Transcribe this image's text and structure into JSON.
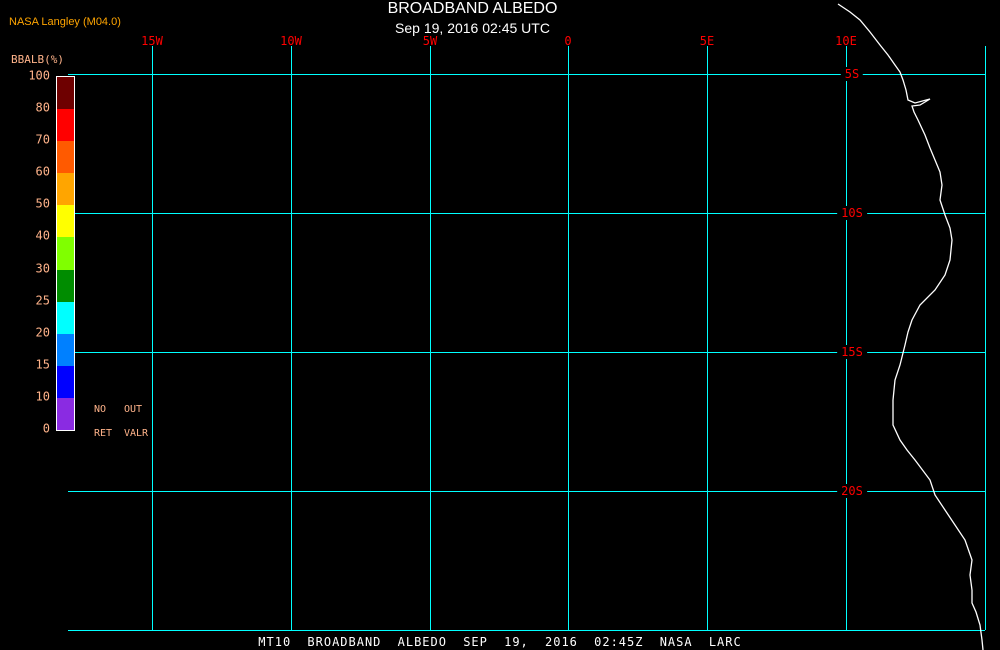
{
  "title": "BROADBAND ALBEDO",
  "subtitle": "Sep 19, 2016 02:45 UTC",
  "credit": "NASA Langley (M04.0)",
  "footer": "MT10  BROADBAND ALBEDO  SEP 19, 2016 02:45Z  NASA LARC",
  "grid_color": "#00ffff",
  "coastline_color": "#ffffff",
  "longitude_labels": [
    "15W",
    "10W",
    "5W",
    "0",
    "5E",
    "10E"
  ],
  "latitude_labels": [
    "5S",
    "10S",
    "15S",
    "20S"
  ],
  "colorbar": {
    "title": "BBALB(%)",
    "tick_labels": [
      "0",
      "10",
      "15",
      "20",
      "25",
      "30",
      "40",
      "50",
      "60",
      "70",
      "80",
      "100"
    ],
    "colors": [
      "#8a2be2",
      "#0000ff",
      "#0080ff",
      "#00ffff",
      "#008c00",
      "#80ff00",
      "#ffff00",
      "#ffa500",
      "#ff5a00",
      "#ff0000",
      "#6e0000"
    ],
    "no_retrieval_label_1": "NO",
    "no_retrieval_label_2": "RET",
    "out_of_range_label_1": "OUT",
    "out_of_range_label_2": "VALR"
  }
}
